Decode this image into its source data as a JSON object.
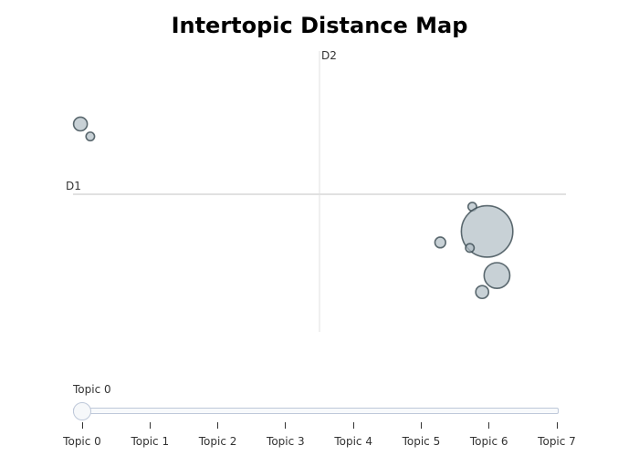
{
  "chart_data": {
    "type": "scatter",
    "title": "Intertopic Distance Map",
    "xlabel": "D1",
    "ylabel": "D2",
    "xlim": [
      -10,
      10
    ],
    "ylim": [
      -10,
      10
    ],
    "grid": false,
    "zero_lines": true,
    "bubble_color": "#b0bec5",
    "bubble_edge_color": "#37474f",
    "points": [
      {
        "x": -9.7,
        "y": 5.1,
        "size": 3.2
      },
      {
        "x": -9.3,
        "y": 4.2,
        "size": 2.0
      },
      {
        "x": 6.2,
        "y": -0.9,
        "size": 2.0
      },
      {
        "x": 6.8,
        "y": -2.7,
        "size": 12.0
      },
      {
        "x": 4.9,
        "y": -3.5,
        "size": 2.5
      },
      {
        "x": 6.1,
        "y": -3.9,
        "size": 2.0
      },
      {
        "x": 7.2,
        "y": -5.9,
        "size": 6.0
      },
      {
        "x": 6.6,
        "y": -7.1,
        "size": 3.0
      }
    ]
  },
  "slider": {
    "current_label": "Topic 0",
    "selected_index": 0,
    "steps": [
      "Topic 0",
      "Topic 1",
      "Topic 2",
      "Topic 3",
      "Topic 4",
      "Topic 5",
      "Topic 6",
      "Topic 7"
    ]
  }
}
